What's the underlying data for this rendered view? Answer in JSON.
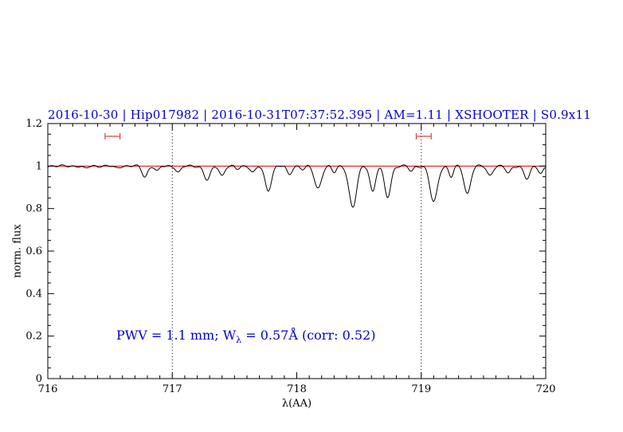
{
  "title": "2016-10-30 | Hip017982 | 2016-10-31T07:37:52.395 | AM=1.11 | XSHOOTER | S0.9x11",
  "annotation": {
    "part1": "PWV = 1.1 mm; W",
    "sub": "λ",
    "part2": " = 0.57Å (corr: 0.52)"
  },
  "colors": {
    "title": "#0000cd",
    "annotation": "#0000cd",
    "spectrum": "#000000",
    "continuum": "#dd0000",
    "marker": "#dd4444",
    "axis": "#000000"
  },
  "chart_data": {
    "type": "line",
    "title": "2016-10-30 | Hip017982 | 2016-10-31T07:37:52.395 | AM=1.11 | XSHOOTER | S0.9x11",
    "xlabel": "λ(AA)",
    "ylabel": "norm. flux",
    "xlim": [
      716,
      720
    ],
    "ylim": [
      0,
      1.2
    ],
    "x_ticks": [
      716,
      717,
      718,
      719,
      720
    ],
    "x_tick_labels": [
      "716",
      "717",
      "718",
      "719",
      "720"
    ],
    "x_minor_step": 0.1,
    "y_ticks": [
      0,
      0.2,
      0.4,
      0.6,
      0.8,
      1,
      1.2
    ],
    "y_tick_labels": [
      "0",
      "0.2",
      "0.4",
      "0.6",
      "0.8",
      "1",
      "1.2"
    ],
    "y_minor_step": 0.05,
    "grid": "off",
    "legend": "none",
    "vlines": [
      717,
      719
    ],
    "continuum_y": 1.0,
    "markers": [
      {
        "x": 716.52,
        "half_width": 0.06,
        "y": 1.14
      },
      {
        "x": 719.02,
        "half_width": 0.06,
        "y": 1.14
      }
    ],
    "sample_step": 0.004,
    "absorption_lines": [
      [
        716.3,
        0.012,
        0.02
      ],
      [
        716.55,
        0.01,
        0.02
      ],
      [
        716.78,
        0.05,
        0.022
      ],
      [
        716.88,
        0.025,
        0.018
      ],
      [
        717.05,
        0.03,
        0.02
      ],
      [
        717.28,
        0.065,
        0.026
      ],
      [
        717.4,
        0.045,
        0.02
      ],
      [
        717.52,
        0.015,
        0.018
      ],
      [
        717.65,
        0.03,
        0.02
      ],
      [
        717.77,
        0.115,
        0.026
      ],
      [
        717.94,
        0.04,
        0.02
      ],
      [
        718.05,
        0.015,
        0.018
      ],
      [
        718.17,
        0.105,
        0.028
      ],
      [
        718.3,
        0.03,
        0.018
      ],
      [
        718.45,
        0.195,
        0.03
      ],
      [
        718.61,
        0.12,
        0.022
      ],
      [
        718.73,
        0.145,
        0.026
      ],
      [
        718.92,
        0.025,
        0.018
      ],
      [
        719.1,
        0.17,
        0.03
      ],
      [
        719.24,
        0.05,
        0.018
      ],
      [
        719.37,
        0.13,
        0.026
      ],
      [
        719.55,
        0.045,
        0.022
      ],
      [
        719.7,
        0.035,
        0.02
      ],
      [
        719.85,
        0.06,
        0.024
      ],
      [
        719.96,
        0.035,
        0.018
      ]
    ],
    "annotation_text": "PWV = 1.1 mm; Wλ = 0.57Å (corr: 0.52)",
    "annotation_xy": [
      716.55,
      0.22
    ]
  }
}
